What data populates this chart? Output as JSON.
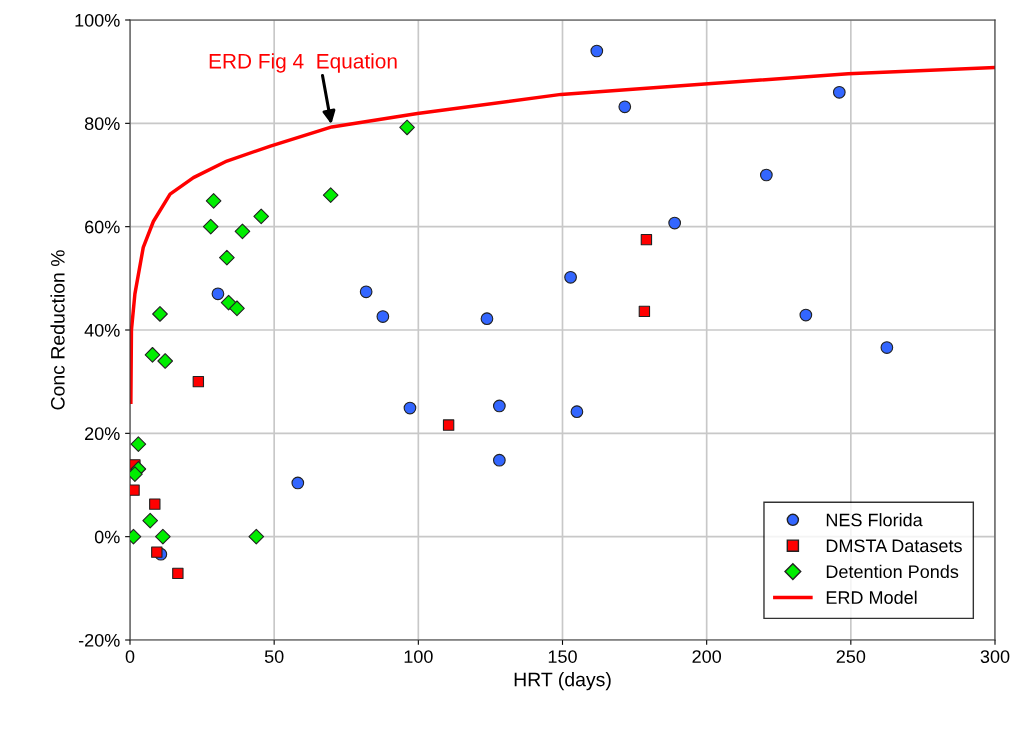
{
  "chart_data": {
    "type": "scatter",
    "xlabel": "HRT (days)",
    "ylabel": "Conc Reduction %",
    "xlim": [
      0,
      300
    ],
    "xticks": [
      0,
      50,
      100,
      150,
      200,
      250,
      300
    ],
    "ylim": [
      -20,
      100
    ],
    "yticks": [
      {
        "value": -20,
        "label": "-20%"
      },
      {
        "value": 0,
        "label": "0%"
      },
      {
        "value": 20,
        "label": "20%"
      },
      {
        "value": 40,
        "label": "40%"
      },
      {
        "value": 60,
        "label": "60%"
      },
      {
        "value": 80,
        "label": "80%"
      },
      {
        "value": 100,
        "label": "100%"
      }
    ],
    "grid": true,
    "legend": "bottom right",
    "annotations": [
      "ERD Fig 4  Equation"
    ],
    "series": [
      {
        "name": "NES Florida",
        "marker": "circle",
        "color": "#3366ff",
        "x": [
          161.9,
          171.6,
          220.7,
          246,
          188.9,
          152.8,
          234.4,
          262.5,
          81.9,
          87.7,
          123.8,
          97.1,
          128.1,
          155.0,
          128.1,
          58.2,
          30.5,
          10.7
        ],
        "values": [
          94,
          83.2,
          70,
          86,
          60.7,
          50.2,
          42.9,
          36.6,
          47.4,
          42.6,
          42.2,
          24.9,
          25.3,
          24.2,
          14.8,
          10.4,
          47,
          -3.4
        ]
      },
      {
        "name": "DMSTA Datasets",
        "marker": "square",
        "color": "#ff0000",
        "x": [
          179.1,
          178.4,
          110.5,
          23.7,
          1.7,
          1.4,
          8.6,
          9.3,
          16.6
        ],
        "values": [
          57.5,
          43.6,
          21.6,
          30,
          13.9,
          9,
          6.3,
          -3,
          -7.1
        ]
      },
      {
        "name": "Detention Ponds",
        "marker": "diamond",
        "color": "#00ee00",
        "x": [
          96.1,
          69.6,
          29.0,
          45.5,
          28.0,
          39.0,
          33.6,
          34.2,
          37.1,
          10.4,
          7.8,
          12.2,
          2.9,
          2.9,
          1.7,
          7.0,
          1.2,
          11.4,
          43.8
        ],
        "values": [
          79.2,
          66.1,
          65,
          62,
          60,
          59.1,
          54,
          45.3,
          44.2,
          43.1,
          35.2,
          34,
          17.9,
          13.1,
          12.1,
          3.1,
          0,
          0,
          0
        ]
      },
      {
        "name": "ERD Model",
        "type": "line",
        "marker": "none",
        "color": "#ff0000",
        "x": [
          0.3,
          0.5,
          1.7,
          4.6,
          8.1,
          13.9,
          22,
          33.6,
          48.7,
          70,
          99.7,
          149.5,
          199.3,
          249.1,
          300
        ],
        "values": [
          26,
          40,
          47,
          56,
          61,
          66.3,
          69.5,
          72.7,
          75.6,
          79.3,
          81.9,
          85.6,
          87.6,
          89.6,
          90.8
        ]
      }
    ]
  }
}
